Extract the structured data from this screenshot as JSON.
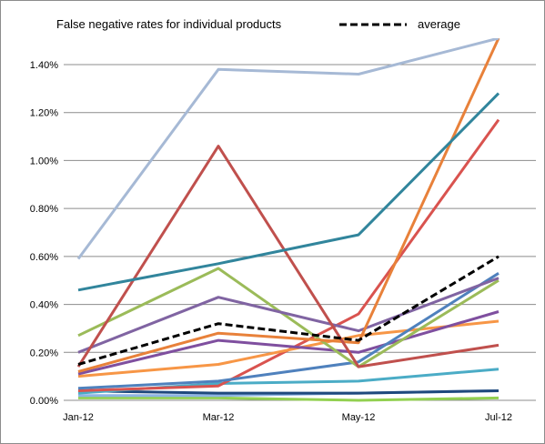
{
  "chart_data": {
    "type": "line",
    "title": "",
    "xlabel": "",
    "ylabel": "",
    "categories": [
      "Jan-12",
      "Mar-12",
      "May-12",
      "Jul-12"
    ],
    "ylim": [
      0,
      0.0151
    ],
    "y_ticks": [
      "0.00%",
      "0.20%",
      "0.40%",
      "0.60%",
      "0.80%",
      "1.00%",
      "1.20%",
      "1.40%"
    ],
    "y_tick_values": [
      0,
      0.002,
      0.004,
      0.006,
      0.008,
      0.01,
      0.012,
      0.014
    ],
    "grid": true,
    "legend_position": "top",
    "legend": [
      {
        "label": "False negative rates for individual products",
        "style": "none"
      },
      {
        "label": "average",
        "style": "dashed",
        "color": "#000000"
      }
    ],
    "series": [
      {
        "color": "#a6b9d5",
        "values": [
          0.0059,
          0.0138,
          0.0136,
          0.0151
        ],
        "clip_end": true
      },
      {
        "color": "#31859c",
        "values": [
          0.0046,
          0.0057,
          0.0069,
          0.0128
        ]
      },
      {
        "color": "#c0504d",
        "values": [
          0.0014,
          0.0106,
          0.0014,
          0.0023
        ]
      },
      {
        "color": "#e8813a",
        "values": [
          0.0012,
          0.0028,
          0.0024,
          0.0151
        ],
        "clip_end": true
      },
      {
        "color": "#8064a2",
        "values": [
          0.002,
          0.0043,
          0.0029,
          0.0051
        ]
      },
      {
        "color": "#9bbb59",
        "values": [
          0.0027,
          0.0055,
          0.0014,
          0.005
        ]
      },
      {
        "color": "#4f81bd",
        "values": [
          0.0005,
          0.0008,
          0.0016,
          0.0053
        ]
      },
      {
        "color": "#7f4f9f",
        "values": [
          0.0011,
          0.0025,
          0.002,
          0.0037
        ]
      },
      {
        "color": "#f79646",
        "values": [
          0.001,
          0.0015,
          0.0027,
          0.0033
        ]
      },
      {
        "color": "#d9534f",
        "values": [
          0.0004,
          0.0006,
          0.0036,
          0.0117
        ]
      },
      {
        "color": "#4bacc6",
        "values": [
          0.0003,
          0.0007,
          0.0008,
          0.0013
        ]
      },
      {
        "color": "#1f497d",
        "values": [
          0.0004,
          0.0003,
          0.0003,
          0.0004
        ]
      },
      {
        "color": "#8eb4e3",
        "values": [
          0.0002,
          0.0002,
          0.0003,
          0.0004
        ]
      },
      {
        "color": "#92d050",
        "values": [
          0.0001,
          0.0001,
          0.0,
          0.0001
        ]
      },
      {
        "color": "#000000",
        "values": [
          0.0015,
          0.0032,
          0.0025,
          0.006
        ],
        "dashed": true,
        "name": "average"
      }
    ]
  }
}
